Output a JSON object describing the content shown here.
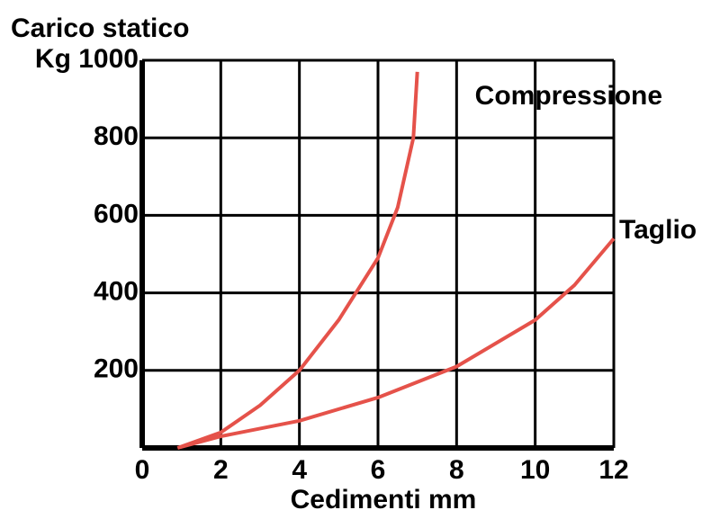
{
  "chart_data": {
    "type": "line",
    "title": "Carico statico",
    "x_label": "Cedimenti mm",
    "xlim": [
      0,
      12
    ],
    "ylim": [
      0,
      1000
    ],
    "xticks": [
      0,
      2,
      4,
      6,
      8,
      10,
      12
    ],
    "yticks": [
      200,
      400,
      600,
      800,
      {
        "value": 1000,
        "label": "Kg 1000"
      }
    ],
    "grid": true,
    "x": [
      0.9,
      2,
      3,
      4,
      5,
      6,
      6.5,
      6.9,
      7
    ],
    "series": [
      {
        "name": "Compressione",
        "color": "#e5524a",
        "x": [
          0.9,
          2,
          3,
          4,
          5,
          6,
          6.5,
          6.9,
          7
        ],
        "values": [
          0,
          40,
          110,
          200,
          330,
          490,
          620,
          800,
          970
        ]
      },
      {
        "name": "Taglio",
        "color": "#e5524a",
        "x": [
          0.9,
          2,
          4,
          6,
          8,
          10,
          11,
          12
        ],
        "values": [
          0,
          30,
          70,
          130,
          210,
          330,
          420,
          540
        ]
      }
    ]
  }
}
